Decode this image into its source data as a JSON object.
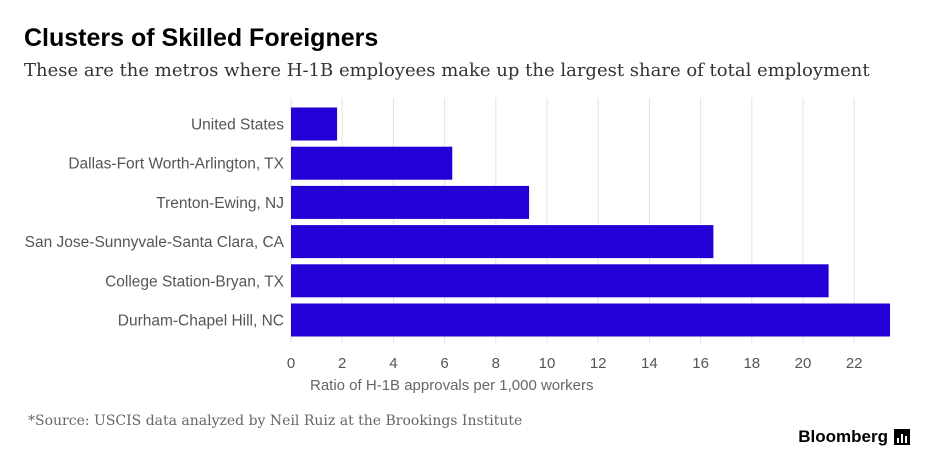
{
  "title": "Clusters of Skilled Foreigners",
  "subtitle": "These are the metros where H-1B employees make up the largest share of total employment",
  "source": "*Source: USCIS data analyzed by Neil Ruiz at the Brookings Institute",
  "brand": "Bloomberg",
  "brand_icon": "bloomberg-chart-icon",
  "chart_data": {
    "type": "bar",
    "orientation": "horizontal",
    "title": "Clusters of Skilled Foreigners",
    "subtitle": "These are the metros where H-1B employees make up the largest share of total employment",
    "xlabel": "Ratio of H-1B approvals per 1,000 workers",
    "ylabel": "",
    "categories": [
      "United States",
      "Dallas-Fort Worth-Arlington, TX",
      "Trenton-Ewing, NJ",
      "San Jose-Sunnyvale-Santa Clara, CA",
      "College Station-Bryan, TX",
      "Durham-Chapel Hill, NC"
    ],
    "values": [
      1.8,
      6.3,
      9.3,
      16.5,
      21.0,
      23.4
    ],
    "xlim": [
      0,
      23.5
    ],
    "xticks": [
      0,
      2,
      4,
      6,
      8,
      10,
      12,
      14,
      16,
      18,
      20,
      22
    ],
    "grid": "vertical",
    "legend": "none",
    "bar_color": "#2400d6"
  }
}
